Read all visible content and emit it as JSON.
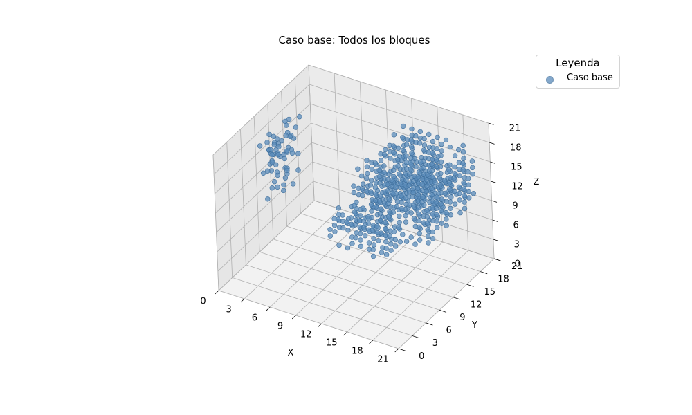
{
  "chart_data": {
    "type": "scatter",
    "title": "Caso base: Todos los bloques",
    "xlabel": "X",
    "ylabel": "Y",
    "zlabel": "Z",
    "xlim": [
      0,
      21
    ],
    "ylim": [
      0,
      21
    ],
    "zlim": [
      0,
      21
    ],
    "xticks": [
      "0",
      "3",
      "6",
      "9",
      "12",
      "15",
      "18",
      "21"
    ],
    "yticks": [
      "0",
      "3",
      "6",
      "9",
      "12",
      "15",
      "18",
      "21"
    ],
    "zticks": [
      "0",
      "3",
      "6",
      "9",
      "12",
      "15",
      "18",
      "21"
    ],
    "grid": true,
    "legend": {
      "title": "Leyenda",
      "position": "top-right"
    },
    "series": [
      {
        "name": "Caso base",
        "color": "#5b8cbb",
        "clusters": [
          {
            "region": "large block",
            "x": [
              12,
              20
            ],
            "y": [
              8,
              19
            ],
            "z": [
              10,
              18
            ]
          },
          {
            "region": "tail block",
            "x": [
              9,
              15
            ],
            "y": [
              8,
              12
            ],
            "z": [
              6,
              10
            ]
          },
          {
            "region": "scattered column",
            "x": [
              0,
              2
            ],
            "y": [
              9,
              16
            ],
            "z": [
              8,
              17
            ]
          }
        ]
      }
    ]
  }
}
